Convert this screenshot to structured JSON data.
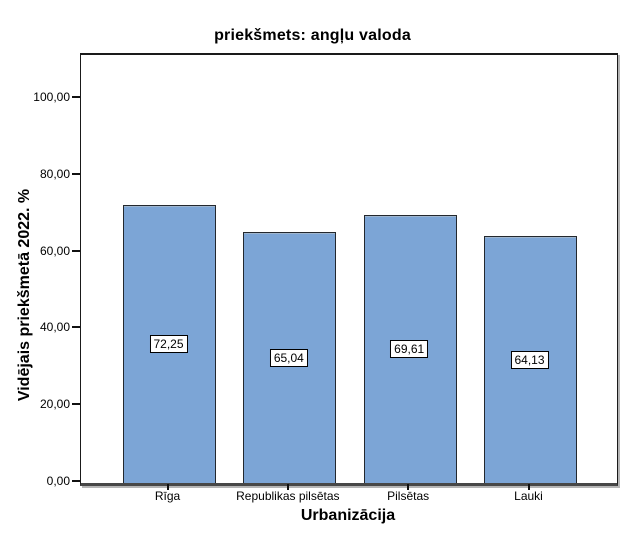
{
  "chart_data": {
    "type": "bar",
    "title": "priekšmets: angļu valoda",
    "xlabel": "Urbanizācija",
    "ylabel": "Vidējais priekšmetā 2022. %",
    "categories": [
      "Rīga",
      "Republikas pilsētas",
      "Pilsētas",
      "Lauki"
    ],
    "values": [
      72.25,
      65.04,
      69.61,
      64.13
    ],
    "value_labels": [
      "72,25",
      "65,04",
      "69,61",
      "64,13"
    ],
    "yticks": [
      0,
      20,
      40,
      60,
      80,
      100
    ],
    "ytick_labels": [
      "0,00",
      "20,00",
      "40,00",
      "60,00",
      "80,00",
      "100,00"
    ],
    "ylim": [
      0,
      111.5
    ],
    "grid": false,
    "legend": null,
    "bar_color": "#7CA5D6",
    "bar_border_color": "#23282e",
    "axis_line_color": "#474747"
  }
}
